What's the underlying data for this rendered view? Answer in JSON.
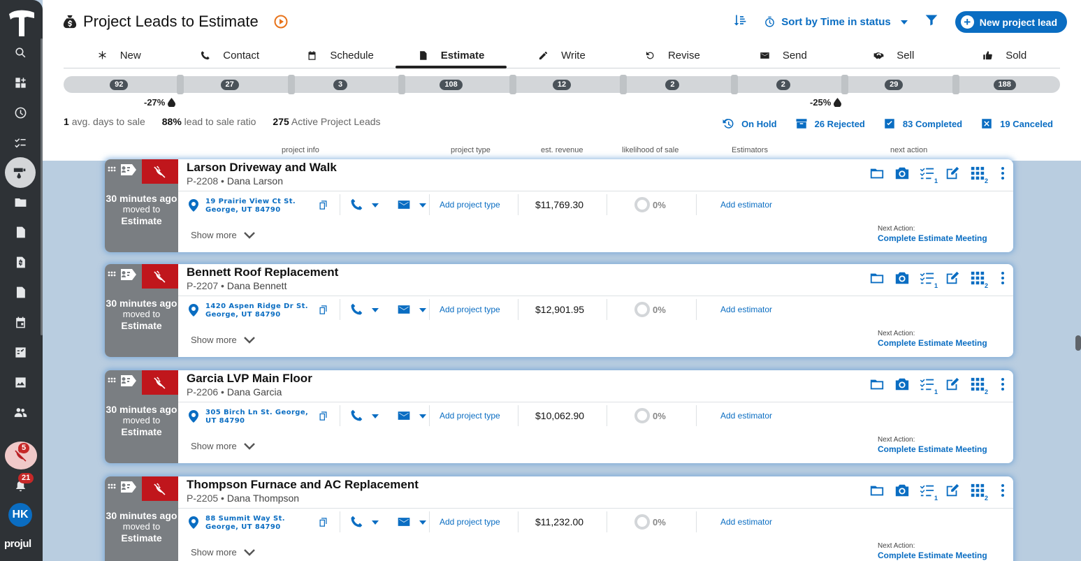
{
  "sidebar": {
    "brand": "projul",
    "alert_badge": "5",
    "notifications_badge": "21",
    "avatar_initials": "HK"
  },
  "header": {
    "title": "Project Leads to Estimate",
    "sort_label": "Sort by Time in status",
    "new_button_label": "New project lead"
  },
  "tabs": [
    {
      "label": "New",
      "icon": "asterisk-icon"
    },
    {
      "label": "Contact",
      "icon": "phone-icon"
    },
    {
      "label": "Schedule",
      "icon": "calendar-icon"
    },
    {
      "label": "Estimate",
      "icon": "document-icon",
      "active": true
    },
    {
      "label": "Write",
      "icon": "pencil-icon"
    },
    {
      "label": "Revise",
      "icon": "undo-icon"
    },
    {
      "label": "Send",
      "icon": "envelope-icon"
    },
    {
      "label": "Sell",
      "icon": "handshake-icon"
    },
    {
      "label": "Sold",
      "icon": "thumbs-up-icon"
    }
  ],
  "pipeline": {
    "counts": [
      "92",
      "27",
      "3",
      "108",
      "12",
      "2",
      "2",
      "29",
      "188"
    ],
    "drops": [
      "-27%",
      "-25%"
    ]
  },
  "stats": {
    "avg_days_value": "1",
    "avg_days_label": "avg. days to sale",
    "ratio_value": "88%",
    "ratio_label": "lead to sale ratio",
    "active_value": "275",
    "active_label": "Active Project Leads"
  },
  "status_links": {
    "on_hold": "On Hold",
    "rejected": "26 Rejected",
    "completed": "83 Completed",
    "canceled": "19 Canceled"
  },
  "columns": {
    "info": "project info",
    "type": "project type",
    "revenue": "est. revenue",
    "likelihood": "likelihood of sale",
    "estimators": "Estimators",
    "next": "next action"
  },
  "card_common": {
    "time": "30 minutes ago",
    "moved": "moved to",
    "stage": "Estimate",
    "add_type": "Add project type",
    "likelihood": "0%",
    "add_estimator": "Add estimator",
    "show_more": "Show more",
    "next_label": "Next Action:",
    "next_action": "Complete Estimate Meeting",
    "checklist_count": "1",
    "grid_count": "2"
  },
  "cards": [
    {
      "title": "Larson Driveway and Walk",
      "code": "P-2208",
      "person": "Dana Larson",
      "address": "19 Prairie View Ct St. George, UT 84790",
      "revenue": "$11,769.30"
    },
    {
      "title": "Bennett Roof Replacement",
      "code": "P-2207",
      "person": "Dana Bennett",
      "address": "1420 Aspen Ridge Dr St. George, UT 84790",
      "revenue": "$12,901.95"
    },
    {
      "title": "Garcia LVP Main Floor",
      "code": "P-2206",
      "person": "Dana Garcia",
      "address": "305 Birch Ln St. George, UT 84790",
      "revenue": "$10,062.90"
    },
    {
      "title": "Thompson Furnace and AC Replacement",
      "code": "P-2205",
      "person": "Dana Thompson",
      "address": "88 Summit Way St. George, UT 84790",
      "revenue": "$11,232.00"
    }
  ],
  "colors": {
    "accent": "#0a6dc2",
    "sidebar": "#2e3236",
    "alert": "#c0161c",
    "card_left": "#7a7e82"
  }
}
